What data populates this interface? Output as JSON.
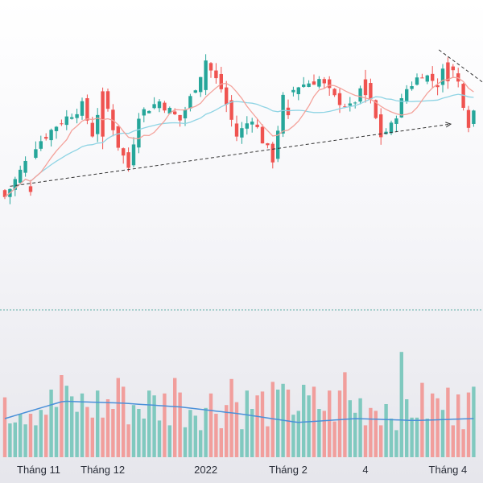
{
  "colors": {
    "up": "#26a69a",
    "down": "#ef5350",
    "vol_up": "#80c9bf",
    "vol_down": "#f19e9c",
    "ma_fast": "#f4a29b",
    "ma_slow": "#8fd4e4",
    "vol_ma": "#4a90d9",
    "trendline": "#333333",
    "separator": "#5fb0a8"
  },
  "chart_data": {
    "type": "candlestick",
    "x_tick_labels": [
      "Tháng 11",
      "Tháng 12",
      "2022",
      "Tháng 2",
      "4",
      "Tháng 4"
    ],
    "price_axis_visible": false,
    "grid": false,
    "legend": "none",
    "candle_count": 92,
    "price_range": [
      89,
      121
    ],
    "volume_range": [
      0,
      120
    ],
    "volume_ma_approx": [
      40,
      58,
      56,
      52,
      45,
      36,
      40,
      38,
      40
    ],
    "series": [
      {
        "role": "candles",
        "ohlc_samples": [
          {
            "label": "Tháng 11",
            "o": 96.5,
            "h": 97.5,
            "l": 95.0,
            "c": 95.6
          },
          {
            "label": "Tháng 12",
            "o": 111.6,
            "h": 112.2,
            "l": 102.4,
            "c": 104.4
          },
          {
            "label": "2022",
            "o": 111.8,
            "h": 117.5,
            "l": 111.0,
            "c": 116.5
          },
          {
            "label": "Tháng 2",
            "o": 109.0,
            "h": 110.3,
            "l": 107.2,
            "c": 107.8
          },
          {
            "label": "4",
            "o": 113.5,
            "h": 115.0,
            "l": 109.8,
            "c": 111.0
          },
          {
            "label": "Tháng 4",
            "o": 116.2,
            "h": 117.0,
            "l": 112.0,
            "c": 113.2
          }
        ]
      },
      {
        "role": "ma_fast",
        "approx": [
          96,
          104,
          107,
          110,
          112,
          113,
          111,
          113,
          112,
          115
        ]
      },
      {
        "role": "ma_slow",
        "approx": [
          94,
          100,
          104,
          107,
          109,
          110,
          110,
          112,
          112,
          114
        ]
      },
      {
        "role": "trendline",
        "from": {
          "i": 1,
          "price": 96.5
        },
        "to": {
          "i": 80,
          "price": 106.4
        }
      }
    ]
  }
}
